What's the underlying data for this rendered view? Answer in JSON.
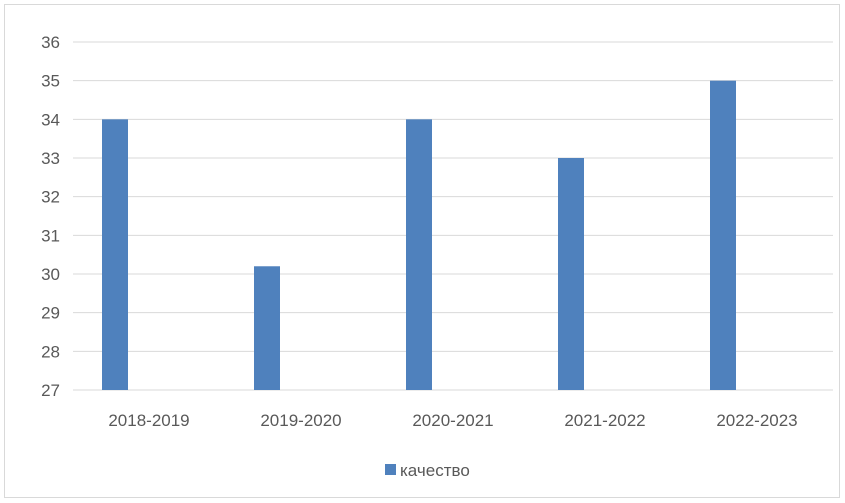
{
  "chart_data": {
    "type": "bar",
    "categories": [
      "2018-2019",
      "2019-2020",
      "2020-2021",
      "2021-2022",
      "2022-2023"
    ],
    "series": [
      {
        "name": "качество",
        "values": [
          34,
          30.2,
          34,
          33,
          35
        ],
        "color": "#4f81bd"
      }
    ],
    "ylim": [
      27,
      36
    ],
    "yticks": [
      "27",
      "28",
      "29",
      "30",
      "31",
      "32",
      "33",
      "34",
      "35",
      "36"
    ],
    "grid": true,
    "gridColor": "#d9d9d9",
    "legend_position": "bottom"
  }
}
